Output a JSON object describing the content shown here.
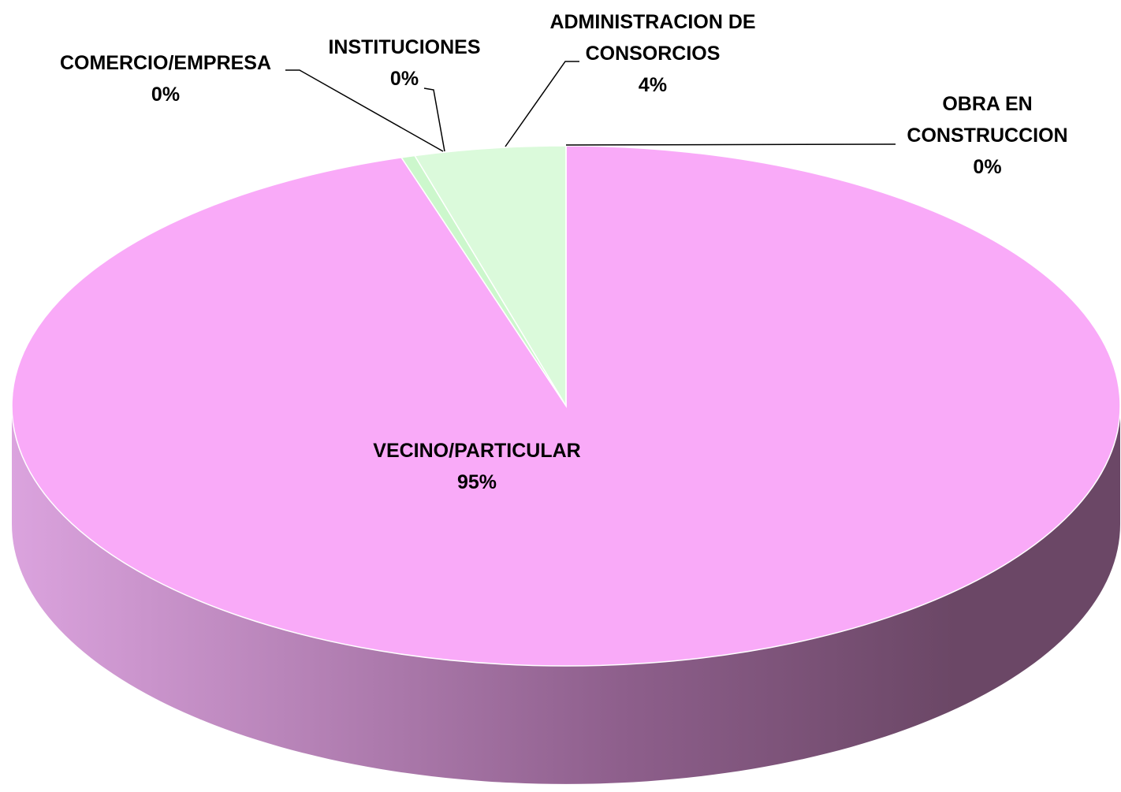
{
  "chart_data": {
    "type": "pie",
    "categories": [
      "VECINO/PARTICULAR",
      "COMERCIO/EMPRESA",
      "INSTITUCIONES",
      "ADMINISTRACION DE CONSORCIOS",
      "OBRA EN CONSTRUCCION"
    ],
    "values": [
      95.2,
      0,
      0.4,
      4.4,
      0
    ],
    "value_labels": [
      "95%",
      "0%",
      "0%",
      "4%",
      "0%"
    ],
    "colors": [
      "#f9aaf8",
      null,
      "#ccf7cc",
      "#dbfadb",
      null
    ]
  }
}
